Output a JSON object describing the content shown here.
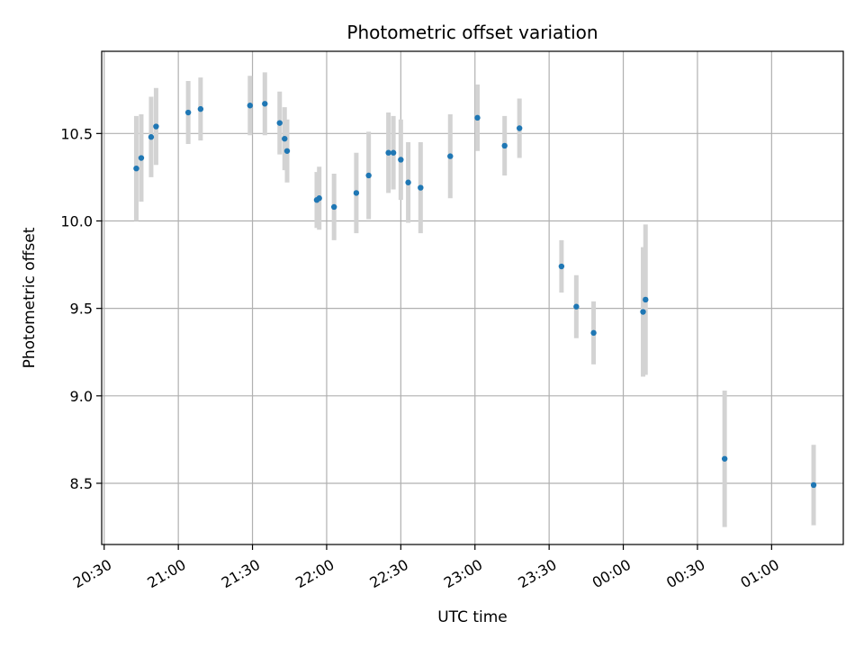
{
  "chart_data": {
    "type": "scatter",
    "title": "Photometric offset variation",
    "xlabel": "UTC time",
    "ylabel": "Photometric offset",
    "x_axis_kind": "time",
    "xlim": [
      "20:29",
      "01:29"
    ],
    "ylim": [
      8.15,
      10.97
    ],
    "xticks": [
      "20:30",
      "21:00",
      "21:30",
      "22:00",
      "22:30",
      "23:00",
      "23:30",
      "00:00",
      "00:30",
      "01:00"
    ],
    "yticks": [
      8.5,
      9.0,
      9.5,
      10.0,
      10.5
    ],
    "grid": true,
    "point_color": "#1f77b4",
    "errorbar_color": "#d3d3d3",
    "points": [
      {
        "t": "20:43",
        "y": 10.3,
        "err": 0.3
      },
      {
        "t": "20:45",
        "y": 10.36,
        "err": 0.25
      },
      {
        "t": "20:49",
        "y": 10.48,
        "err": 0.23
      },
      {
        "t": "20:51",
        "y": 10.54,
        "err": 0.22
      },
      {
        "t": "21:04",
        "y": 10.62,
        "err": 0.18
      },
      {
        "t": "21:09",
        "y": 10.64,
        "err": 0.18
      },
      {
        "t": "21:29",
        "y": 10.66,
        "err": 0.17
      },
      {
        "t": "21:35",
        "y": 10.67,
        "err": 0.18
      },
      {
        "t": "21:41",
        "y": 10.56,
        "err": 0.18
      },
      {
        "t": "21:43",
        "y": 10.47,
        "err": 0.18
      },
      {
        "t": "21:44",
        "y": 10.4,
        "err": 0.18
      },
      {
        "t": "21:56",
        "y": 10.12,
        "err": 0.16
      },
      {
        "t": "21:57",
        "y": 10.13,
        "err": 0.18
      },
      {
        "t": "22:03",
        "y": 10.08,
        "err": 0.19
      },
      {
        "t": "22:12",
        "y": 10.16,
        "err": 0.23
      },
      {
        "t": "22:17",
        "y": 10.26,
        "err": 0.25
      },
      {
        "t": "22:25",
        "y": 10.39,
        "err": 0.23
      },
      {
        "t": "22:27",
        "y": 10.39,
        "err": 0.21
      },
      {
        "t": "22:30",
        "y": 10.35,
        "err": 0.23
      },
      {
        "t": "22:33",
        "y": 10.22,
        "err": 0.23
      },
      {
        "t": "22:38",
        "y": 10.19,
        "err": 0.26
      },
      {
        "t": "22:50",
        "y": 10.37,
        "err": 0.24
      },
      {
        "t": "23:01",
        "y": 10.59,
        "err": 0.19
      },
      {
        "t": "23:12",
        "y": 10.43,
        "err": 0.17
      },
      {
        "t": "23:18",
        "y": 10.53,
        "err": 0.17
      },
      {
        "t": "23:35",
        "y": 9.74,
        "err": 0.15
      },
      {
        "t": "23:41",
        "y": 9.51,
        "err": 0.18
      },
      {
        "t": "23:48",
        "y": 9.36,
        "err": 0.18
      },
      {
        "t": "00:08",
        "y": 9.48,
        "err": 0.37
      },
      {
        "t": "00:09",
        "y": 9.55,
        "err": 0.43
      },
      {
        "t": "00:41",
        "y": 8.64,
        "err": 0.39
      },
      {
        "t": "01:17",
        "y": 8.49,
        "err": 0.23
      }
    ]
  }
}
